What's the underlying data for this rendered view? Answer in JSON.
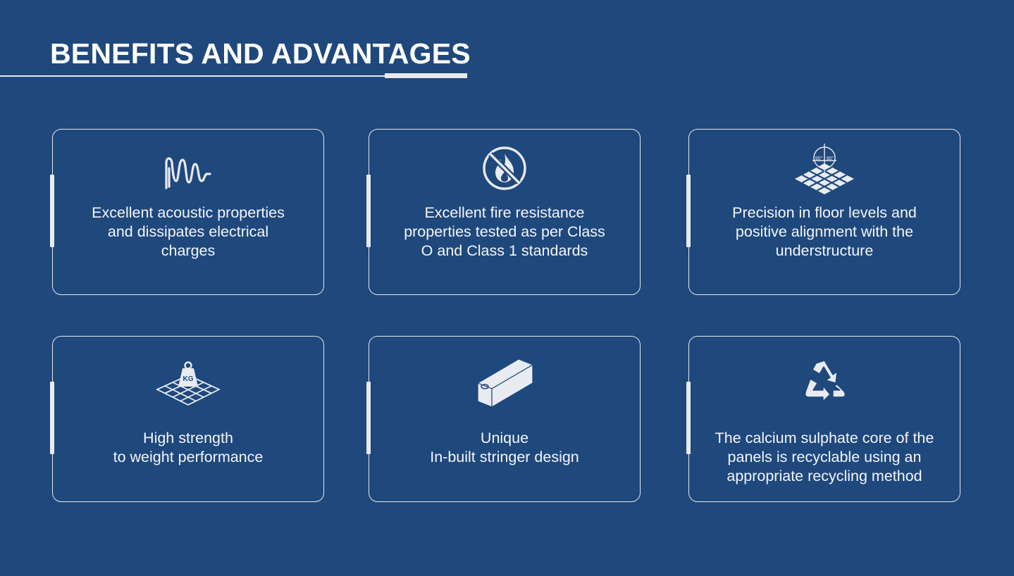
{
  "title": "BENEFITS AND ADVANTAGES",
  "cards": [
    {
      "icon": "sound-wave-icon",
      "lines": [
        "Excellent acoustic properties",
        "and dissipates electrical",
        "charges"
      ]
    },
    {
      "icon": "no-fire-icon",
      "lines": [
        "Excellent fire resistance",
        "properties tested as per Class",
        "O and Class 1 standards"
      ]
    },
    {
      "icon": "floor-level-icon",
      "lines": [
        "Precision in floor levels and",
        "positive alignment with the",
        "understructure"
      ],
      "icon_label": "90°|90°"
    },
    {
      "icon": "weight-kg-icon",
      "lines": [
        "High strength",
        "to weight performance"
      ],
      "icon_label": "KG"
    },
    {
      "icon": "stringer-beam-icon",
      "lines": [
        "Unique",
        "In-built stringer design"
      ]
    },
    {
      "icon": "recycle-icon",
      "lines": [
        "The calcium sulphate core of the",
        "panels is recyclable using an",
        "appropriate recycling method"
      ]
    }
  ],
  "colors": {
    "background": "#1f487c",
    "foreground": "#e4e8ef"
  }
}
